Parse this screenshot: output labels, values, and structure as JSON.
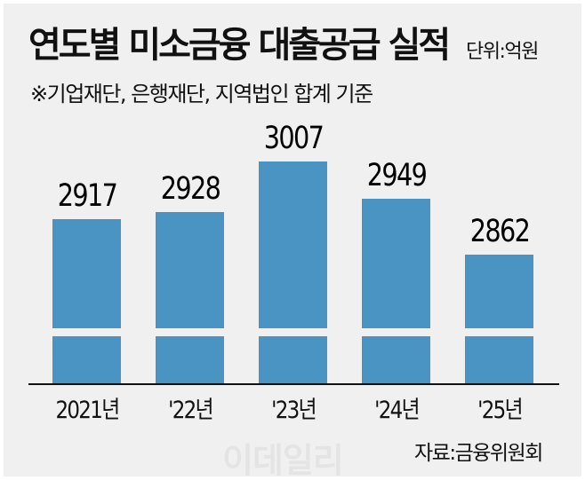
{
  "header": {
    "title": "연도별 미소금융 대출공급 실적",
    "unit": "단위:억원",
    "subtitle": "※기업재단, 은행재단, 지역법인 합계 기준"
  },
  "footer": {
    "source": "자료:금융위원회",
    "watermark": "이데일리"
  },
  "colors": {
    "bar": "#4a94c4",
    "background": "#f0f0f0",
    "text": "#111111"
  },
  "chart_data": {
    "type": "bar",
    "title": "연도별 미소금융 대출공급 실적",
    "subtitle": "※기업재단, 은행재단, 지역법인 합계 기준",
    "unit": "억원",
    "categories": [
      "2021년",
      "'22년",
      "'23년",
      "'24년",
      "'25년"
    ],
    "values": [
      2917,
      2928,
      3007,
      2949,
      2862
    ],
    "value_labels": [
      "2917",
      "2928",
      "3007",
      "2949",
      "2862"
    ],
    "xlabel": "",
    "ylabel": "",
    "axis_break": true,
    "grid": false,
    "legend": null,
    "source": "자료:금융위원회"
  }
}
